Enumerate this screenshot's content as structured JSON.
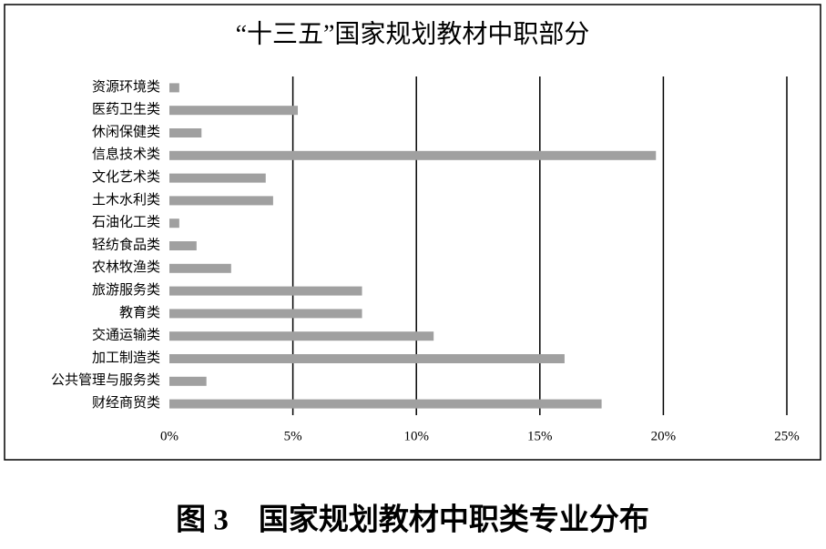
{
  "chart_data": {
    "type": "barh",
    "title": "“十三五”国家规划教材中职部分",
    "categories": [
      "资源环境类",
      "医药卫生类",
      "休闲保健类",
      "信息技术类",
      "文化艺术类",
      "土木水利类",
      "石油化工类",
      "轻纺食品类",
      "农林牧渔类",
      "旅游服务类",
      "教育类",
      "交通运输类",
      "加工制造类",
      "公共管理与服务类",
      "财经商贸类"
    ],
    "values": [
      0.4,
      5.2,
      1.3,
      19.7,
      3.9,
      4.2,
      0.4,
      1.1,
      2.5,
      7.8,
      7.8,
      10.7,
      16.0,
      1.5,
      17.5
    ],
    "color": "#a0a0a0",
    "xlim": [
      0,
      25
    ],
    "xticks": [
      {
        "value": 0,
        "label": "0%"
      },
      {
        "value": 5,
        "label": "5%"
      },
      {
        "value": 10,
        "label": "10%"
      },
      {
        "value": 15,
        "label": "15%"
      },
      {
        "value": 20,
        "label": "20%"
      },
      {
        "value": 25,
        "label": "25%"
      }
    ],
    "grid": true
  },
  "caption": "图 3　国家规划教材中职类专业分布"
}
